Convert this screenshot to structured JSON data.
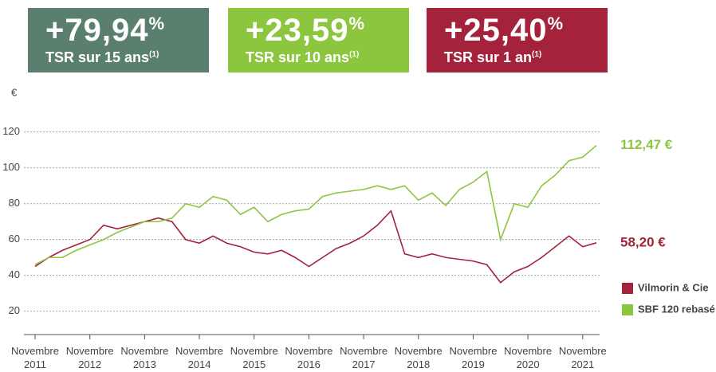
{
  "stats": [
    {
      "value": "+79,94",
      "unit": "%",
      "label": "TSR sur 15 ans",
      "note": "(1)",
      "color": "#5b7f6f"
    },
    {
      "value": "+23,59",
      "unit": "%",
      "label": "TSR sur 10 ans",
      "note": "(1)",
      "color": "#8cc63f"
    },
    {
      "value": "+25,40",
      "unit": "%",
      "label": "TSR sur 1 an",
      "note": "(1)",
      "color": "#a4223c"
    }
  ],
  "chart_data": {
    "type": "line",
    "y_label": "€",
    "categories": [
      "Novembre 2011",
      null,
      null,
      null,
      "Novembre 2012",
      null,
      null,
      null,
      "Novembre 2013",
      null,
      null,
      null,
      "Novembre 2014",
      null,
      null,
      null,
      "Novembre 2015",
      null,
      null,
      null,
      "Novembre 2016",
      null,
      null,
      null,
      "Novembre 2017",
      null,
      null,
      null,
      "Novembre 2018",
      null,
      null,
      null,
      "Novembre 2019",
      null,
      null,
      null,
      "Novembre 2020",
      null,
      null,
      null,
      "Novembre 2021",
      null
    ],
    "series": [
      {
        "name": "Vilmorin & Cie",
        "color": "#a4223c",
        "values": [
          45,
          50,
          54,
          57,
          60,
          68,
          66,
          68,
          70,
          72,
          70,
          60,
          58,
          62,
          58,
          56,
          53,
          52,
          54,
          50,
          45,
          50,
          55,
          58,
          62,
          68,
          76,
          52,
          50,
          52,
          50,
          49,
          48,
          46,
          36,
          42,
          45,
          50,
          56,
          62,
          56,
          58.2
        ],
        "value_labels": [
          null,
          null,
          null,
          null,
          null,
          null,
          null,
          null,
          null,
          null,
          null,
          null,
          null,
          null,
          null,
          null,
          null,
          null,
          null,
          null,
          null,
          null,
          null,
          null,
          null,
          null,
          null,
          null,
          null,
          null,
          null,
          null,
          null,
          null,
          null,
          null,
          null,
          null,
          null,
          null,
          null,
          "58,20 €"
        ]
      },
      {
        "name": "SBF 120 rebasé",
        "color": "#8cc63f",
        "values": [
          46,
          50,
          50,
          54,
          57,
          60,
          64,
          67,
          70,
          70,
          72,
          80,
          78,
          84,
          82,
          74,
          78,
          70,
          74,
          76,
          77,
          84,
          86,
          87,
          88,
          90,
          88,
          90,
          82,
          86,
          79,
          88,
          92,
          98,
          60,
          80,
          78,
          90,
          96,
          104,
          106,
          112.47
        ],
        "value_labels": [
          null,
          null,
          null,
          null,
          null,
          null,
          null,
          null,
          null,
          null,
          null,
          null,
          null,
          null,
          null,
          null,
          null,
          null,
          null,
          null,
          null,
          null,
          null,
          null,
          null,
          null,
          null,
          null,
          null,
          null,
          null,
          null,
          null,
          null,
          null,
          null,
          null,
          null,
          null,
          null,
          null,
          "112,47 €"
        ]
      }
    ],
    "ylim": [
      7,
      130
    ],
    "yticks": [
      20,
      40,
      60,
      80,
      100,
      120
    ],
    "grid": true
  }
}
